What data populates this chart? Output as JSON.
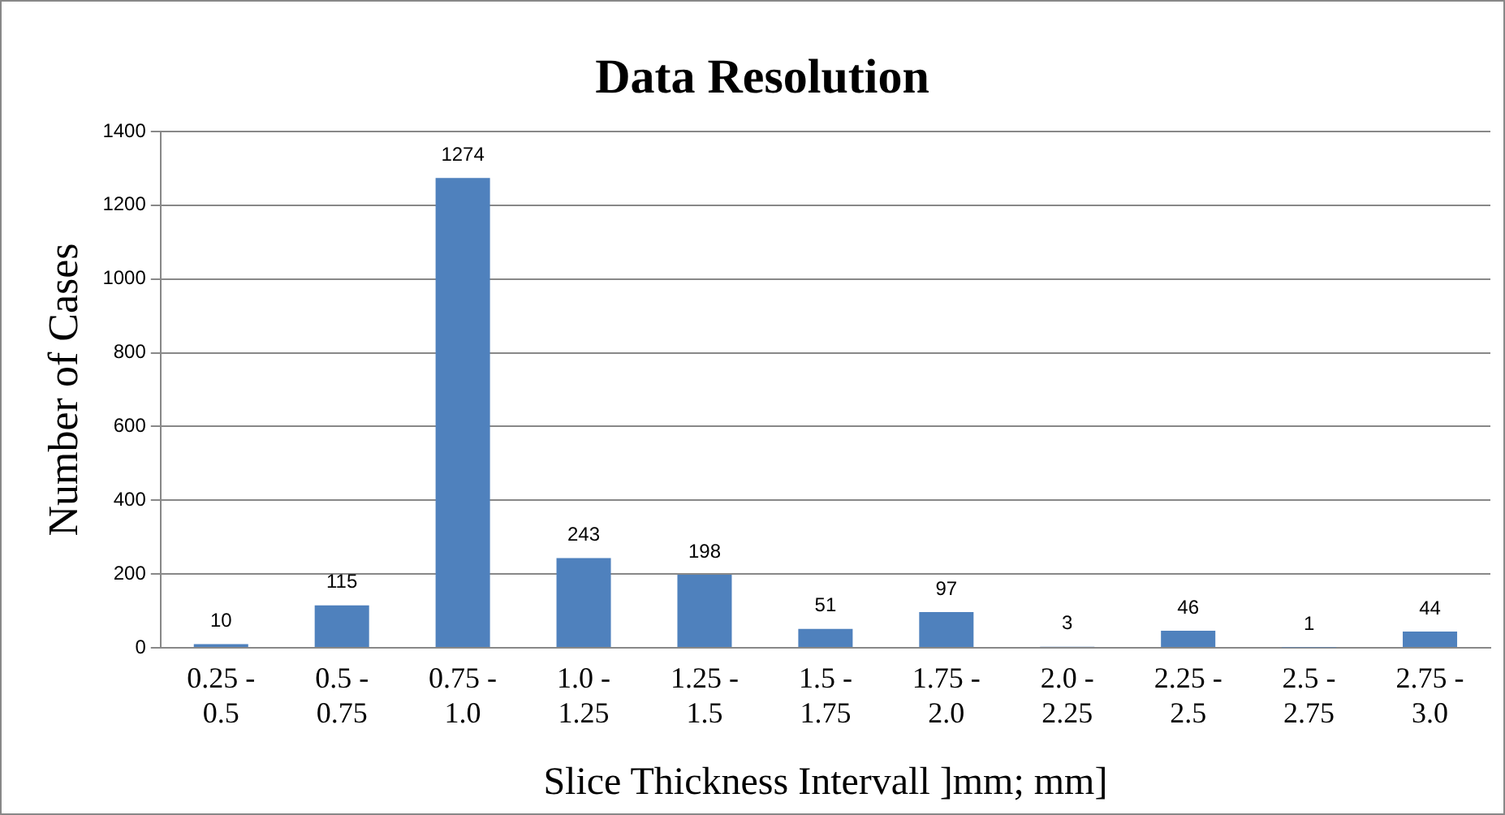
{
  "chart_data": {
    "type": "bar",
    "title": "Data Resolution",
    "xlabel": "Slice Thickness Intervall ]mm; mm]",
    "ylabel": "Number of Cases",
    "categories": [
      "0.25 - 0.5",
      "0.5 - 0.75",
      "0.75 - 1.0",
      "1.0 - 1.25",
      "1.25 - 1.5",
      "1.5 - 1.75",
      "1.75 - 2.0",
      "2.0 - 2.25",
      "2.25 - 2.5",
      "2.5 - 2.75",
      "2.75 - 3.0"
    ],
    "values": [
      10,
      115,
      1274,
      243,
      198,
      51,
      97,
      3,
      46,
      1,
      44
    ],
    "color": "#4f81bd",
    "ylim": [
      0,
      1400
    ],
    "yticks": [
      0,
      200,
      400,
      600,
      800,
      1000,
      1200,
      1400
    ],
    "grid": "y",
    "legend": false,
    "data_labels": true
  }
}
